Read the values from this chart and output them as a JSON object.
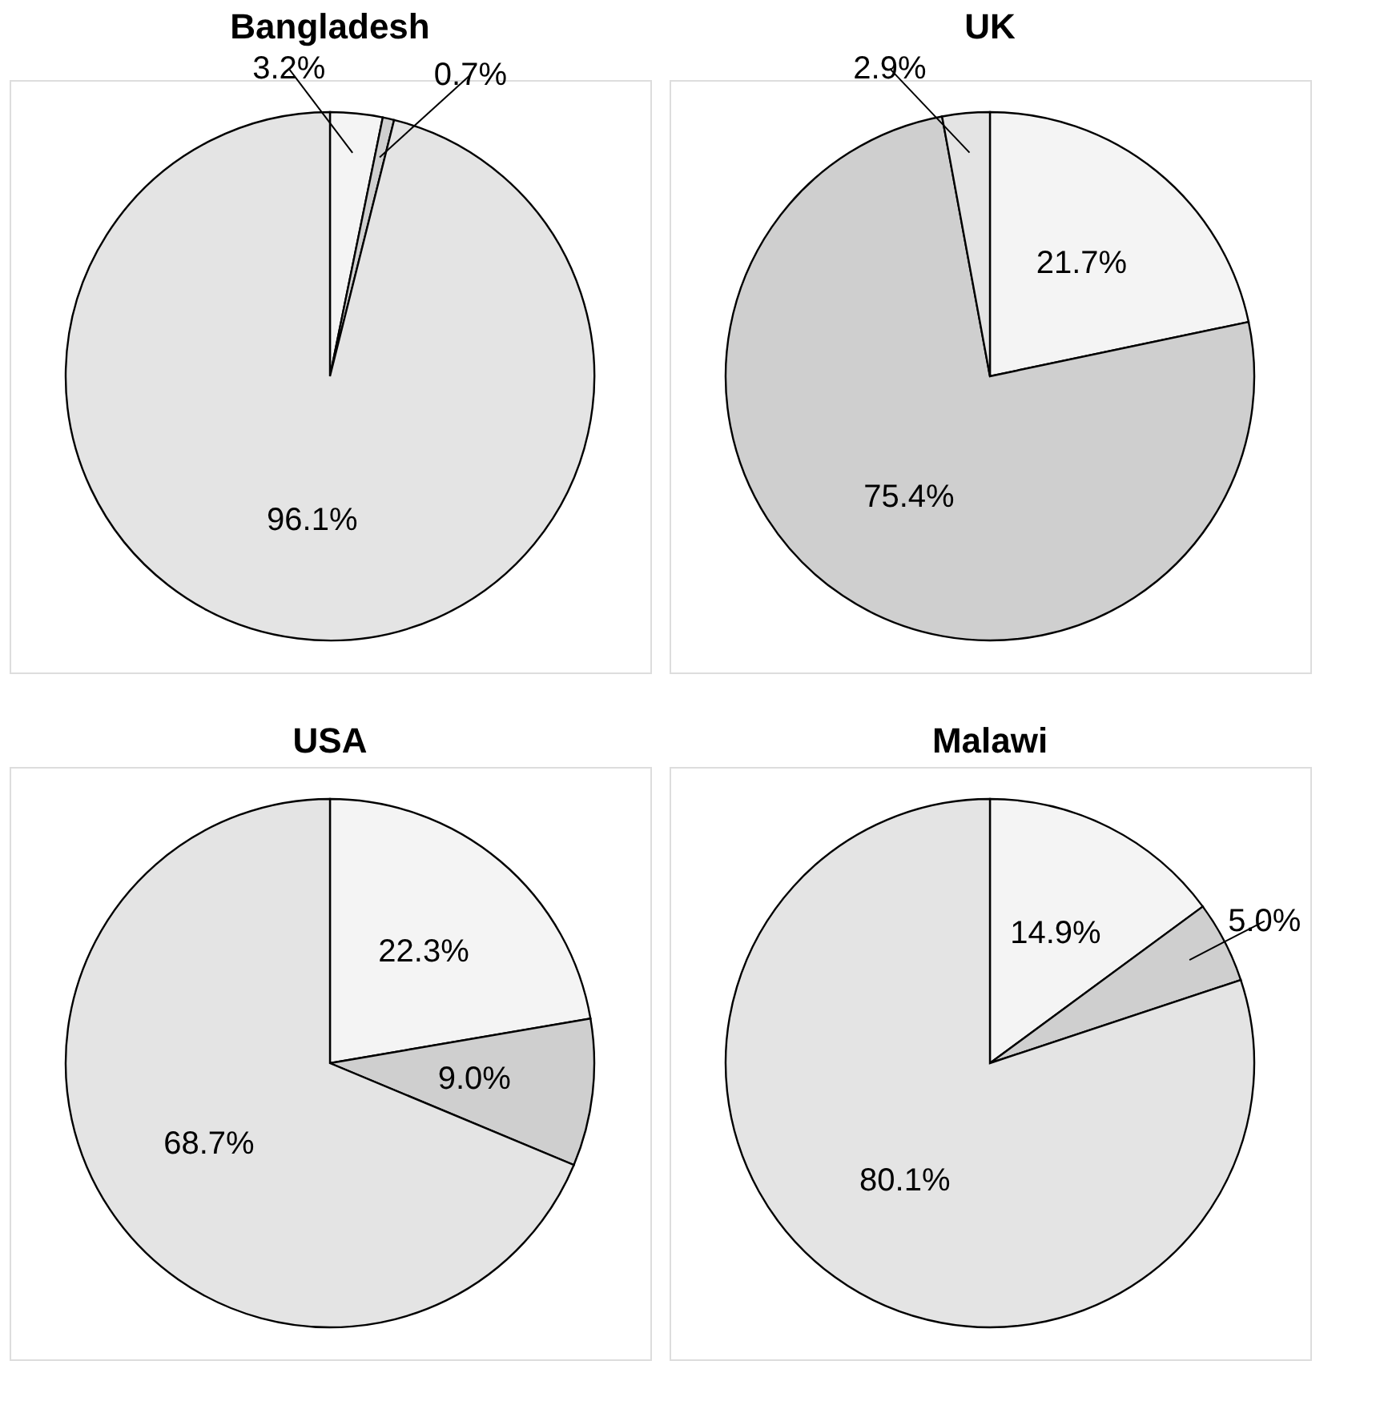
{
  "chart_data": [
    {
      "type": "pie",
      "title": "Bangladesh",
      "categories": [
        null,
        null,
        null
      ],
      "values": [
        3.2,
        0.7,
        96.1
      ],
      "value_labels": [
        "3.2%",
        "0.7%",
        "96.1%"
      ],
      "colors": [
        "#f4f4f4",
        "#cfcfcf",
        "#e4e4e4"
      ],
      "legend": false
    },
    {
      "type": "pie",
      "title": "UK",
      "categories": [
        null,
        null,
        null
      ],
      "values": [
        21.7,
        75.4,
        2.9
      ],
      "value_labels": [
        "21.7%",
        "75.4%",
        "2.9%"
      ],
      "colors": [
        "#f4f4f4",
        "#cfcfcf",
        "#e4e4e4"
      ],
      "legend": false
    },
    {
      "type": "pie",
      "title": "USA",
      "categories": [
        null,
        null,
        null
      ],
      "values": [
        22.3,
        9.0,
        68.7
      ],
      "value_labels": [
        "22.3%",
        "9.0%",
        "68.7%"
      ],
      "colors": [
        "#f4f4f4",
        "#cfcfcf",
        "#e4e4e4"
      ],
      "legend": false
    },
    {
      "type": "pie",
      "title": "Malawi",
      "categories": [
        null,
        null,
        null
      ],
      "values": [
        14.9,
        5.0,
        80.1
      ],
      "value_labels": [
        "14.9%",
        "5.0%",
        "80.1%"
      ],
      "colors": [
        "#f4f4f4",
        "#cfcfcf",
        "#e4e4e4"
      ],
      "legend": false
    }
  ]
}
